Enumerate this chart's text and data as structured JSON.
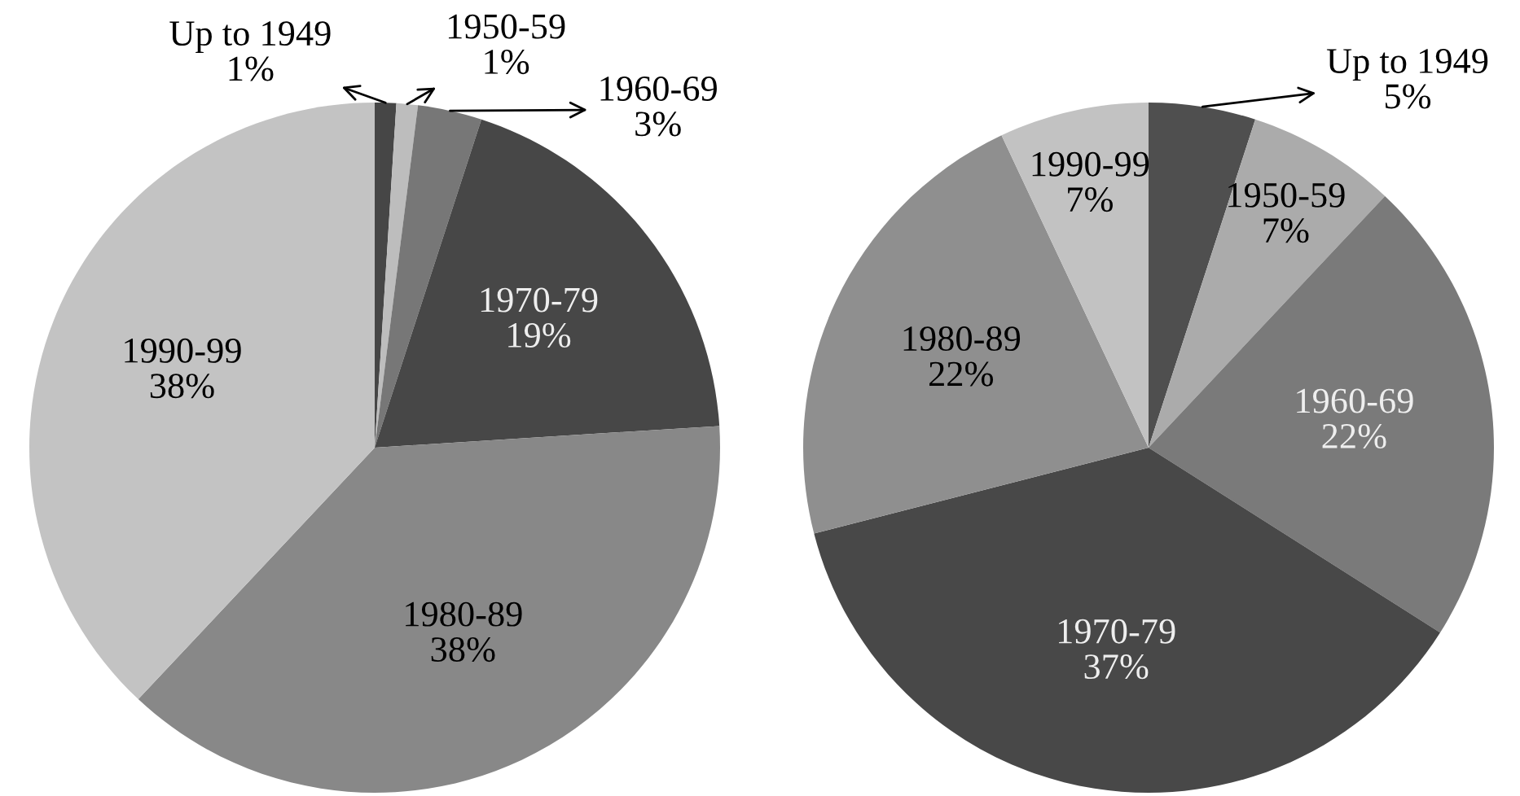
{
  "chart_data": [
    {
      "type": "pie",
      "categories": [
        "Up to 1949",
        "1950-59",
        "1960-69",
        "1970-79",
        "1980-89",
        "1990-99"
      ],
      "values": [
        1,
        1,
        3,
        19,
        38,
        38
      ],
      "value_labels": [
        "1%",
        "1%",
        "3%",
        "19%",
        "38%",
        "38%"
      ],
      "colors": [
        "#464646",
        "#bdbdbd",
        "#777777",
        "#474747",
        "#888888",
        "#c3c3c3"
      ]
    },
    {
      "type": "pie",
      "categories": [
        "Up to 1949",
        "1950-59",
        "1960-69",
        "1970-79",
        "1980-89",
        "1990-99"
      ],
      "values": [
        5,
        7,
        22,
        37,
        22,
        7
      ],
      "value_labels": [
        "5%",
        "7%",
        "22%",
        "37%",
        "22%",
        "7%"
      ],
      "colors": [
        "#4f4f4f",
        "#ababab",
        "#7a7a7a",
        "#484848",
        "#8f8f8f",
        "#c2c2c2"
      ]
    }
  ]
}
